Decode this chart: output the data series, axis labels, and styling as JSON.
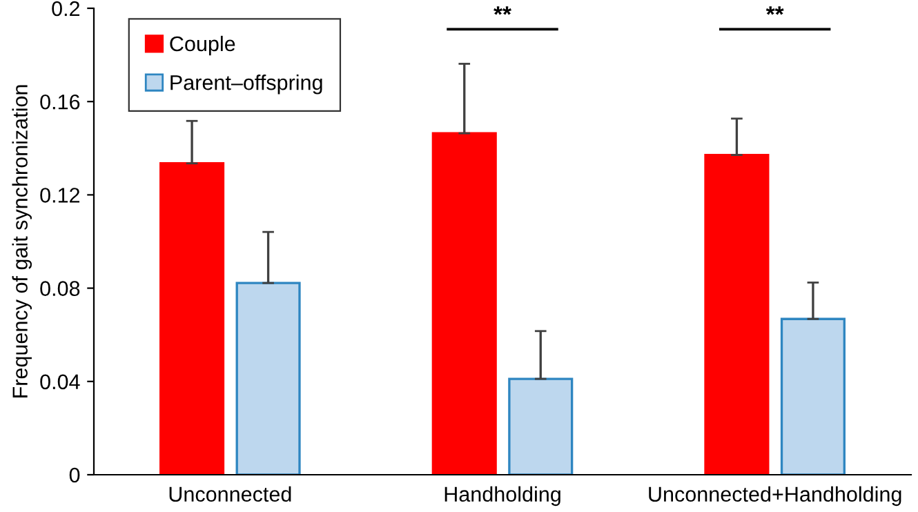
{
  "chart_data": {
    "type": "bar",
    "ylabel": "Frequency of gait synchronization",
    "categories": [
      "Unconnected",
      "Handholding",
      "Unconnected+Handholding"
    ],
    "series": [
      {
        "name": "Couple",
        "color": "#ff0000",
        "values": [
          0.1335,
          0.1464,
          0.1371
        ],
        "errors": [
          [
            0.1335,
            0.1517
          ],
          [
            0.1464,
            0.1762
          ],
          [
            0.1371,
            0.1527
          ]
        ]
      },
      {
        "name": "Parent–offspring",
        "color": "#bdd7ee",
        "values": [
          0.0822,
          0.0411,
          0.0668
        ],
        "errors": [
          [
            0.0822,
            0.1041
          ],
          [
            0.0411,
            0.0616
          ],
          [
            0.0668,
            0.0824
          ]
        ]
      }
    ],
    "ylim": [
      0,
      0.2
    ],
    "yticks": [
      0,
      0.04,
      0.08,
      0.12,
      0.16,
      0.2
    ],
    "annotations": [
      "**",
      "**"
    ],
    "legend": "top left",
    "grid": false
  }
}
